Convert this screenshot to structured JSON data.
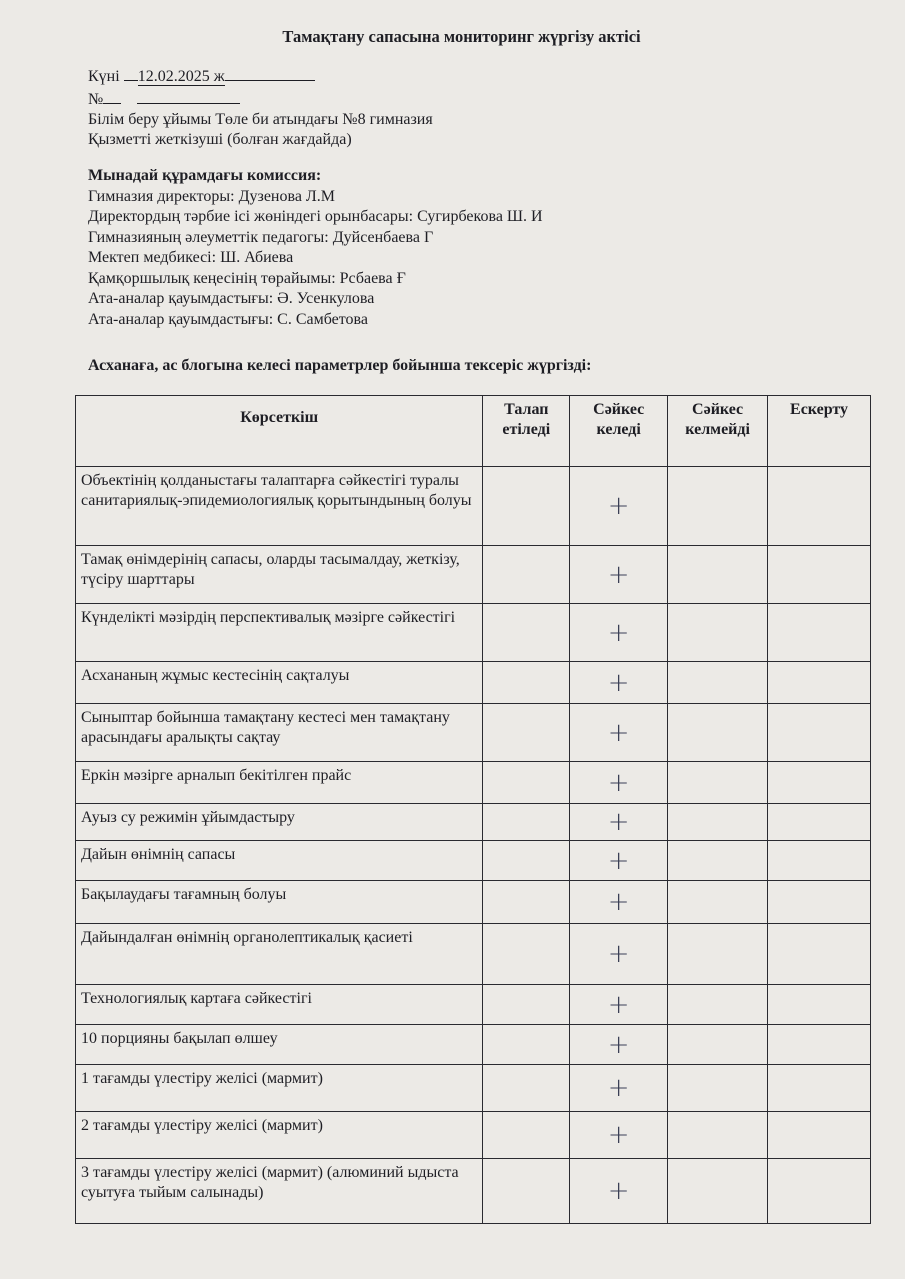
{
  "title": "Тамақтану сапасына мониторинг жүргізу актісі",
  "header": {
    "date_label": "Күні",
    "date_value": "12.02.2025 ж",
    "number_label": "№",
    "organization": "Білім беру ұйымы Төле би атындағы №8 гимназия",
    "provider": "Қызметті жеткізуші (болған жағдайда)"
  },
  "commission": {
    "heading": "Мынадай құрамдағы комиссия:",
    "members": [
      "Гимназия директоры: Дузенова Л.М",
      "Директордың тәрбие ісі жөніндегі орынбасары: Сугирбекова Ш. И",
      "Гимназияның әлеуметтік педагогы: Дуйсенбаева Г",
      "Мектеп медбикесі: Ш. Абиева",
      "Қамқоршылық кеңесінің төрайымы: Рсбаева Ғ",
      "Ата-аналар қауымдастығы: Ә. Усенкулова",
      "Ата-аналар қауымдастығы: С. Самбетова"
    ]
  },
  "inspection_heading": "Асханаға, ас блогына келесі параметрлер бойынша тексеріс жүргізді:",
  "table": {
    "columns": [
      "Көрсеткіш",
      "Талап етіледі",
      "Сәйкес келеді",
      "Сәйкес келмейді",
      "Ескерту"
    ],
    "rows": [
      {
        "indicator": "Объектінің қолданыстағы талаптарға сәйкестігі туралы санитариялық-эпидемиологиялық қорытындының болуы",
        "complies": "+"
      },
      {
        "indicator": "Тамақ өнімдерінің сапасы, оларды тасымалдау, жеткізу, түсіру шарттары",
        "complies": "+"
      },
      {
        "indicator": "Күнделікті мәзірдің перспективалық мәзірге сәйкестігі",
        "complies": "+"
      },
      {
        "indicator": "Асхананың жұмыс кестесінің сақталуы",
        "complies": "+"
      },
      {
        "indicator": "Сыныптар бойынша тамақтану кестесі мен тамақтану арасындағы аралықты сақтау",
        "complies": "+"
      },
      {
        "indicator": "Еркін мәзірге арналып бекітілген прайс",
        "complies": "+"
      },
      {
        "indicator": "Ауыз су режимін ұйымдастыру",
        "complies": "+"
      },
      {
        "indicator": "Дайын өнімнің сапасы",
        "complies": "+"
      },
      {
        "indicator": "Бақылаудағы тағамның болуы",
        "complies": "+"
      },
      {
        "indicator": "Дайындалған өнімнің органолептикалық қасиеті",
        "complies": "+"
      },
      {
        "indicator": "Технологиялық картаға сәйкестігі",
        "complies": "+"
      },
      {
        "indicator": "10 порцияны бақылап өлшеу",
        "complies": "+"
      },
      {
        "indicator": "1 тағамды үлестіру желісі  (мармит)",
        "complies": "+"
      },
      {
        "indicator": "2 тағамды үлестіру желісі  (мармит)",
        "complies": "+"
      },
      {
        "indicator": "3 тағамды үлестіру желісі  (мармит) (алюминий ыдыста суытуға тыйым салынады)",
        "complies": "+"
      }
    ]
  }
}
